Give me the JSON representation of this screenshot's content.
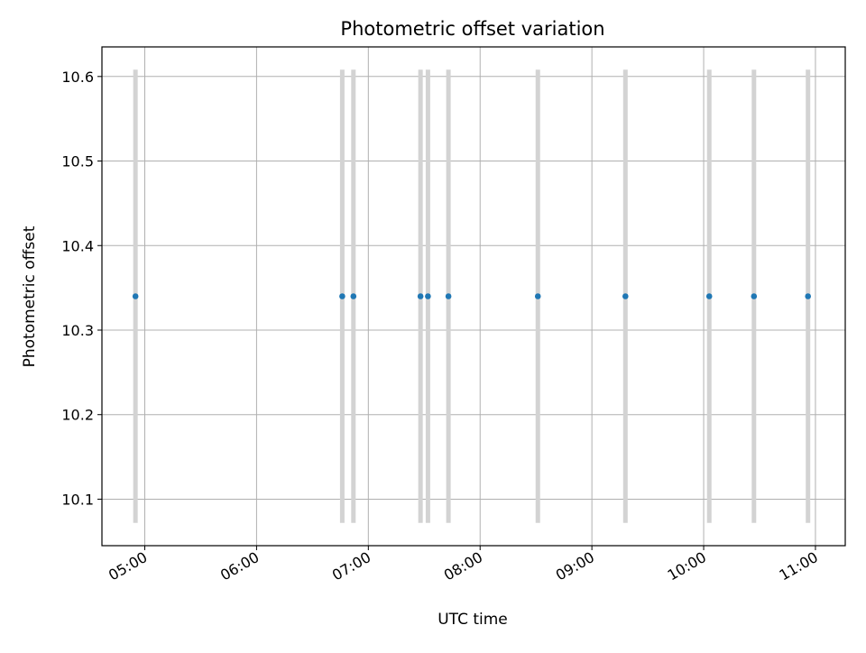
{
  "chart_data": {
    "type": "scatter",
    "title": "Photometric offset variation",
    "xlabel": "UTC time",
    "ylabel": "Photometric offset",
    "x_ticks": [
      "05:00",
      "06:00",
      "07:00",
      "08:00",
      "09:00",
      "10:00",
      "11:00"
    ],
    "y_ticks": [
      "10.1",
      "10.2",
      "10.3",
      "10.4",
      "10.5",
      "10.6"
    ],
    "xlim": [
      "04:37",
      "11:16"
    ],
    "ylim": [
      10.045,
      10.635
    ],
    "grid": true,
    "colors": {
      "points": "#1f77b4",
      "error_bars": "#d3d3d3",
      "grid": "#b0b0b0",
      "axes": "#000000"
    },
    "series": [
      {
        "x": [
          "04:55",
          "06:46",
          "06:52",
          "07:28",
          "07:32",
          "07:43",
          "08:31",
          "09:18",
          "10:03",
          "10:27",
          "10:56"
        ],
        "y": [
          10.34,
          10.34,
          10.34,
          10.34,
          10.34,
          10.34,
          10.34,
          10.34,
          10.34,
          10.34,
          10.34
        ],
        "y_error": [
          0.268,
          0.268,
          0.268,
          0.268,
          0.268,
          0.268,
          0.268,
          0.268,
          0.268,
          0.268,
          0.268
        ]
      }
    ]
  }
}
